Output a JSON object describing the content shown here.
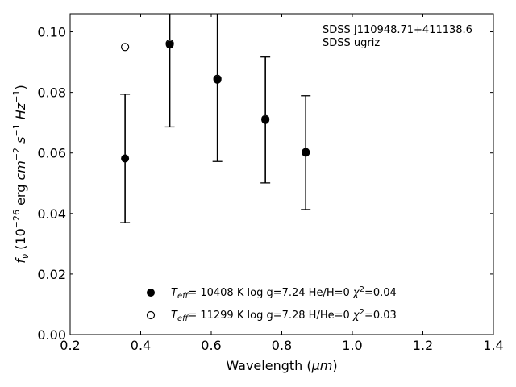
{
  "chart_data": {
    "type": "scatter",
    "xlabel_main": "Wavelength (",
    "xlabel_unit": "μm",
    "xlabel_close": ")",
    "ylabel": "f_ν (10^-26 erg cm^-2 s^-1 Hz^-1)",
    "xlim": [
      0.2,
      1.4
    ],
    "ylim": [
      0.0,
      0.106
    ],
    "x_ticks": [
      "0.2",
      "0.4",
      "0.6",
      "0.8",
      "1.0",
      "1.2",
      "1.4"
    ],
    "y_ticks": [
      "0.00",
      "0.02",
      "0.04",
      "0.06",
      "0.08",
      "0.10"
    ],
    "annotation_line1": "SDSS J110948.71+411138.6",
    "annotation_line2": "SDSS ugriz",
    "series": [
      {
        "name": "T_eff= 10408 K  log g=7.24  He/H=0  χ²=0.04",
        "marker": "filled-circle",
        "x": [
          0.3557,
          0.4825,
          0.6175,
          0.7535,
          0.8679
        ],
        "y": [
          0.0582,
          0.0958,
          0.0842,
          0.0709,
          0.0601
        ],
        "yerr": [
          0.0212,
          0.0272,
          0.027,
          0.0208,
          0.0188
        ]
      },
      {
        "name": "T_eff= 11299 K  log g=7.28  H/He=0  χ²=0.03",
        "marker": "open-circle",
        "x": [
          0.3557,
          0.4825,
          0.6175,
          0.7535,
          0.8679
        ],
        "y": [
          0.095,
          0.0962,
          0.0845,
          0.0712,
          0.0603
        ]
      }
    ],
    "legend_placement": "lower-center",
    "grid": false
  }
}
